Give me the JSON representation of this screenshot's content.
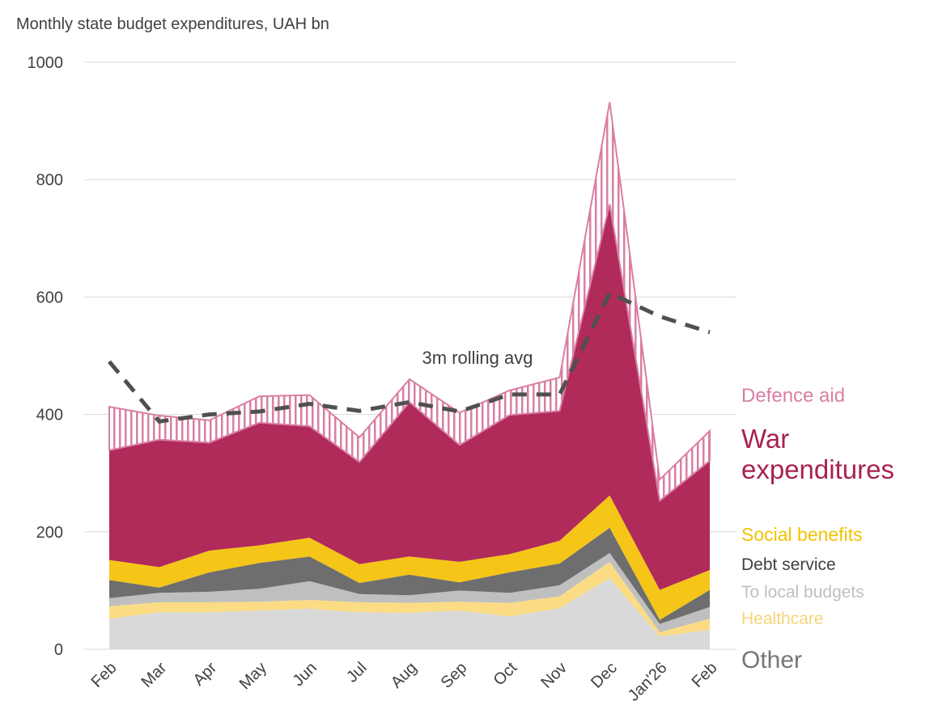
{
  "chart_data": {
    "type": "stacked_area",
    "title": "Monthly state budget expenditures, UAH bn",
    "categories": [
      "Feb",
      "Mar",
      "Apr",
      "May",
      "Jun",
      "Jul",
      "Aug",
      "Sep",
      "Oct",
      "Nov",
      "Dec",
      "Jan'26",
      "Feb"
    ],
    "series": [
      {
        "name": "Other",
        "color": "#d9d9d9",
        "values": [
          52,
          63,
          63,
          66,
          69,
          63,
          62,
          66,
          56,
          70,
          121,
          22,
          33
        ]
      },
      {
        "name": "Healthcare",
        "color": "#fbdc84",
        "values": [
          21,
          17,
          17,
          15,
          15,
          17,
          17,
          15,
          23,
          20,
          28,
          7,
          19
        ]
      },
      {
        "name": "To local budgets",
        "color": "#bfbfbf",
        "values": [
          14,
          16,
          18,
          22,
          32,
          14,
          13,
          19,
          17,
          19,
          15,
          14,
          20
        ]
      },
      {
        "name": "Debt service",
        "color": "#6e6e6e",
        "values": [
          31,
          9,
          33,
          44,
          42,
          19,
          35,
          14,
          35,
          37,
          43,
          7,
          29
        ]
      },
      {
        "name": "Social benefits",
        "color": "#f5c518",
        "values": [
          34,
          35,
          37,
          30,
          32,
          32,
          31,
          35,
          31,
          39,
          55,
          51,
          34
        ]
      },
      {
        "name": "War expenditures",
        "color": "#b02a5a",
        "values": [
          187,
          217,
          184,
          209,
          190,
          174,
          263,
          199,
          237,
          221,
          496,
          152,
          186
        ]
      },
      {
        "name": "Defence aid",
        "color": "#d97fa3",
        "values": [
          74,
          41,
          38,
          45,
          53,
          42,
          39,
          55,
          42,
          57,
          174,
          36,
          51
        ]
      }
    ],
    "line": {
      "name": "3m rolling avg",
      "color": "#505050",
      "values": [
        490,
        388,
        400,
        405,
        418,
        406,
        421,
        405,
        434,
        434,
        607,
        567,
        540
      ]
    },
    "ylim": [
      0,
      1000
    ],
    "yticks": [
      0,
      200,
      400,
      600,
      800,
      1000
    ],
    "grid": true
  }
}
